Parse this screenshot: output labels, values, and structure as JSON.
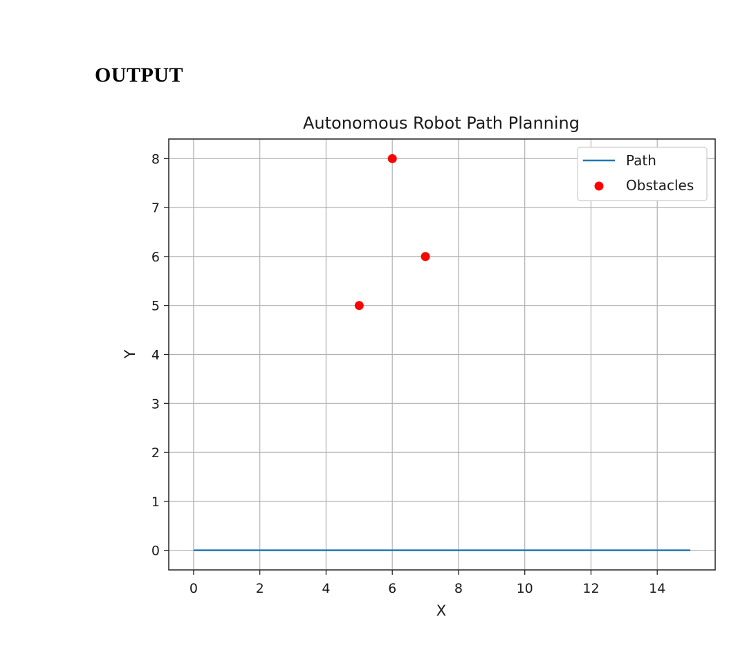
{
  "page": {
    "heading": "OUTPUT"
  },
  "chart_data": {
    "type": "line",
    "title": "Autonomous Robot Path Planning",
    "xlabel": "X",
    "ylabel": "Y",
    "xlim": [
      -0.75,
      15.75
    ],
    "ylim": [
      -0.4,
      8.4
    ],
    "xticks": [
      0,
      2,
      4,
      6,
      8,
      10,
      12,
      14
    ],
    "yticks": [
      0,
      1,
      2,
      3,
      4,
      5,
      6,
      7,
      8
    ],
    "grid": true,
    "legend": "top-right",
    "series": [
      {
        "name": "Path",
        "type": "line",
        "color": "#1f77b4",
        "x": [
          0,
          15
        ],
        "y": [
          0,
          0
        ]
      },
      {
        "name": "Obstacles",
        "type": "scatter",
        "color": "#ff0000",
        "x": [
          5,
          6,
          7
        ],
        "y": [
          5,
          8,
          6
        ]
      }
    ]
  }
}
